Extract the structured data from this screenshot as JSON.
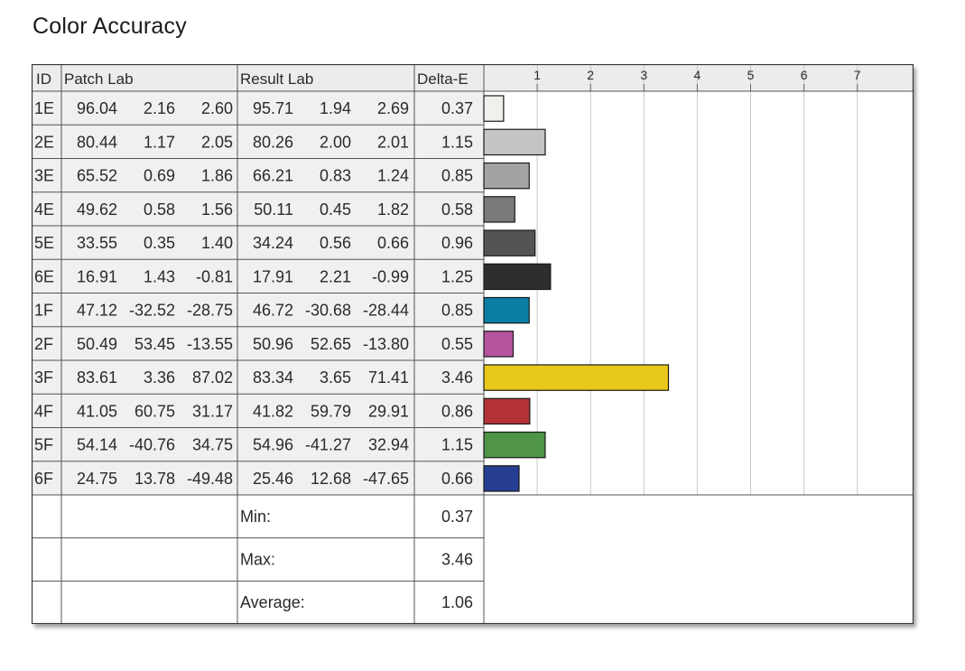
{
  "title": "Color Accuracy",
  "table": {
    "headers": {
      "id": "ID",
      "patch": "Patch Lab",
      "result": "Result Lab",
      "delta": "Delta-E"
    },
    "rows": [
      {
        "id": "1E",
        "patch": [
          "96.04",
          "2.16",
          "2.60"
        ],
        "result": [
          "95.71",
          "1.94",
          "2.69"
        ],
        "delta": "0.37",
        "color": "#f2f0ec"
      },
      {
        "id": "2E",
        "patch": [
          "80.44",
          "1.17",
          "2.05"
        ],
        "result": [
          "80.26",
          "2.00",
          "2.01"
        ],
        "delta": "1.15",
        "color": "#c6c4c2"
      },
      {
        "id": "3E",
        "patch": [
          "65.52",
          "0.69",
          "1.86"
        ],
        "result": [
          "66.21",
          "0.83",
          "1.24"
        ],
        "delta": "0.85",
        "color": "#a3a3a3"
      },
      {
        "id": "4E",
        "patch": [
          "49.62",
          "0.58",
          "1.56"
        ],
        "result": [
          "50.11",
          "0.45",
          "1.82"
        ],
        "delta": "0.58",
        "color": "#7a7a78"
      },
      {
        "id": "5E",
        "patch": [
          "33.55",
          "0.35",
          "1.40"
        ],
        "result": [
          "34.24",
          "0.56",
          "0.66"
        ],
        "delta": "0.96",
        "color": "#545454"
      },
      {
        "id": "6E",
        "patch": [
          "16.91",
          "1.43",
          "-0.81"
        ],
        "result": [
          "17.91",
          "2.21",
          "-0.99"
        ],
        "delta": "1.25",
        "color": "#2e2e2e"
      },
      {
        "id": "1F",
        "patch": [
          "47.12",
          "-32.52",
          "-28.75"
        ],
        "result": [
          "46.72",
          "-30.68",
          "-28.44"
        ],
        "delta": "0.85",
        "color": "#0b7ea6"
      },
      {
        "id": "2F",
        "patch": [
          "50.49",
          "53.45",
          "-13.55"
        ],
        "result": [
          "50.96",
          "52.65",
          "-13.80"
        ],
        "delta": "0.55",
        "color": "#b5559e"
      },
      {
        "id": "3F",
        "patch": [
          "83.61",
          "3.36",
          "87.02"
        ],
        "result": [
          "83.34",
          "3.65",
          "71.41"
        ],
        "delta": "3.46",
        "color": "#e8c81a"
      },
      {
        "id": "4F",
        "patch": [
          "41.05",
          "60.75",
          "31.17"
        ],
        "result": [
          "41.82",
          "59.79",
          "29.91"
        ],
        "delta": "0.86",
        "color": "#b33236"
      },
      {
        "id": "5F",
        "patch": [
          "54.14",
          "-40.76",
          "34.75"
        ],
        "result": [
          "54.96",
          "-41.27",
          "32.94"
        ],
        "delta": "1.15",
        "color": "#4f9447"
      },
      {
        "id": "6F",
        "patch": [
          "24.75",
          "13.78",
          "-49.48"
        ],
        "result": [
          "25.46",
          "12.68",
          "-47.65"
        ],
        "delta": "0.66",
        "color": "#263f92"
      }
    ],
    "summary": [
      {
        "label": "Min:",
        "value": "0.37"
      },
      {
        "label": "Max:",
        "value": "3.46"
      },
      {
        "label": "Average:",
        "value": "1.06"
      }
    ]
  },
  "chart_data": {
    "type": "bar",
    "orientation": "horizontal",
    "title": "Color Accuracy",
    "categories": [
      "1E",
      "2E",
      "3E",
      "4E",
      "5E",
      "6E",
      "1F",
      "2F",
      "3F",
      "4F",
      "5F",
      "6F"
    ],
    "values": [
      0.37,
      1.15,
      0.85,
      0.58,
      0.96,
      1.25,
      0.85,
      0.55,
      3.46,
      0.86,
      1.15,
      0.66
    ],
    "xlabel": "",
    "ylabel": "",
    "xlim": [
      0,
      8
    ],
    "ticks": [
      "1",
      "2",
      "3",
      "4",
      "5",
      "6",
      "7"
    ],
    "grid": true,
    "legend": "none"
  }
}
